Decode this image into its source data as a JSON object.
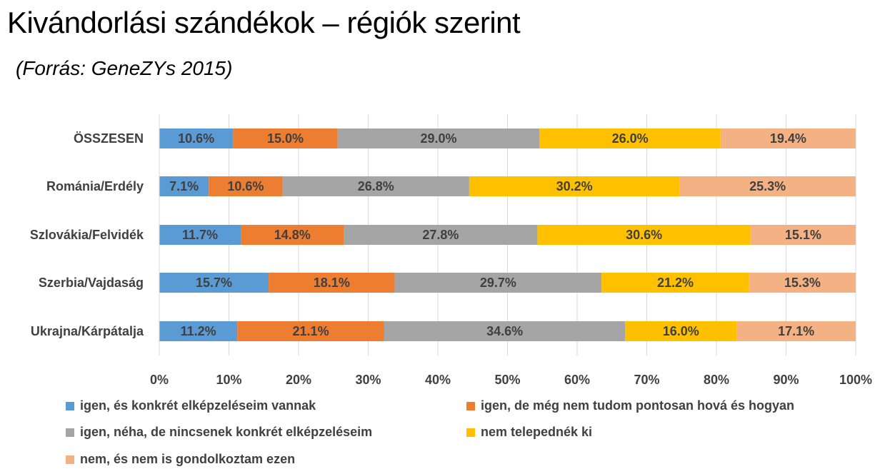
{
  "title": "Kivándorlási szándékok – régiók szerint",
  "subtitle": "(Forrás: GeneZYs 2015)",
  "chart_data": {
    "type": "bar",
    "orientation": "horizontal",
    "stacked": "100%",
    "categories": [
      "ÖSSZESEN",
      "Románia/Erdély",
      "Szlovákia/Felvidék",
      "Szerbia/Vajdaság",
      "Ukrajna/Kárpátalja"
    ],
    "series": [
      {
        "name": "igen, és konkrét elképzeléseim vannak",
        "color": "#5B9BD5",
        "values": [
          10.6,
          7.1,
          11.7,
          15.7,
          11.2
        ]
      },
      {
        "name": "igen, de még nem tudom pontosan hová és hogyan",
        "color": "#ED7D31",
        "values": [
          15.0,
          10.6,
          14.8,
          18.1,
          21.1
        ]
      },
      {
        "name": "igen, néha, de nincsenek konkrét elképzeléseim",
        "color": "#A5A5A5",
        "values": [
          29.0,
          26.8,
          27.8,
          29.7,
          34.6
        ]
      },
      {
        "name": "nem telepednék ki",
        "color": "#FFC000",
        "values": [
          26.0,
          30.2,
          30.6,
          21.2,
          16.0
        ]
      },
      {
        "name": "nem, és nem is gondolkoztam ezen",
        "color": "#F4B183",
        "values": [
          19.4,
          25.3,
          15.1,
          15.3,
          17.1
        ]
      }
    ],
    "data_labels": [
      [
        "10.6%",
        "7.1%",
        "11.7%",
        "15.7%",
        "11.2%"
      ],
      [
        "15.0%",
        "10.6%",
        "14.8%",
        "18.1%",
        "21.1%"
      ],
      [
        "29.0%",
        "26.8%",
        "27.8%",
        "29.7%",
        "34.6%"
      ],
      [
        "26.0%",
        "30.2%",
        "30.6%",
        "21.2%",
        "16.0%"
      ],
      [
        "19.4%",
        "25.3%",
        "15.1%",
        "15.3%",
        "17.1%"
      ]
    ],
    "x_ticks": [
      "0%",
      "10%",
      "20%",
      "30%",
      "40%",
      "50%",
      "60%",
      "70%",
      "80%",
      "90%",
      "100%"
    ],
    "xlim": [
      0,
      100
    ],
    "grid": true,
    "legend_position": "bottom"
  }
}
